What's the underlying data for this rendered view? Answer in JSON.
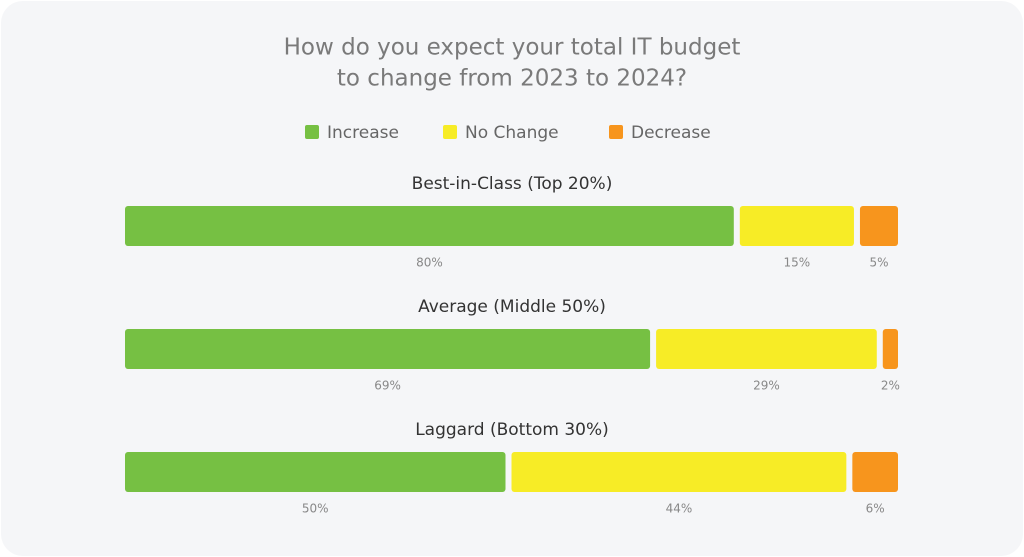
{
  "chart_data": {
    "type": "stacked-bar-horizontal",
    "title": [
      "How do you expect your total IT budget",
      "to change from 2023 to 2024?"
    ],
    "categories": [
      "Best-in-Class (Top 20%)",
      "Average (Middle 50%)",
      "Laggard (Bottom 30%)"
    ],
    "series": [
      {
        "name": "Increase",
        "color": "#76c043",
        "values": [
          80,
          69,
          50
        ],
        "value_labels": [
          "80%",
          "69%",
          "50%"
        ]
      },
      {
        "name": "No Change",
        "color": "#f7ec26",
        "values": [
          15,
          29,
          44
        ],
        "value_labels": [
          "15%",
          "29%",
          "44%"
        ]
      },
      {
        "name": "Decrease",
        "color": "#f7951d",
        "values": [
          5,
          2,
          6
        ],
        "value_labels": [
          "5%",
          "2%",
          "6%"
        ]
      }
    ],
    "legend": "top"
  }
}
